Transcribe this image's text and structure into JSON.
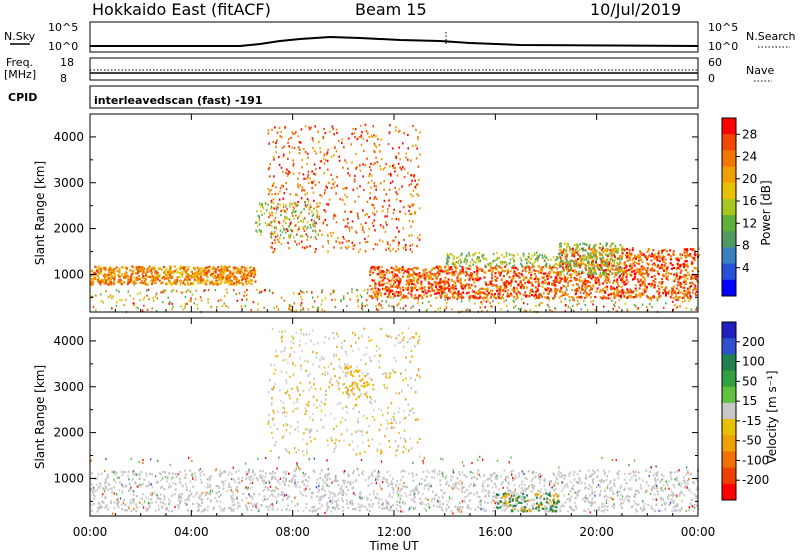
{
  "header": {
    "station": "Hokkaido East (fitACF)",
    "beam": "Beam 15",
    "date": "10/Jul/2019"
  },
  "top_panels": {
    "nsky_label": "N.Sky",
    "nsky_ticks": [
      "10^5",
      "10^0"
    ],
    "nsearch_label": "N.Search",
    "nsearch_ticks": [
      "10^5",
      "10^0"
    ],
    "freq_label_1": "Freq.",
    "freq_label_2": "[MHz]",
    "freq_ticks": [
      "18",
      "8"
    ],
    "nave_label": "Nave",
    "nave_ticks": [
      "60",
      "0"
    ],
    "cpid_label": "CPID",
    "cpid_text": "interleavedscan (fast) -191"
  },
  "chart_data": [
    {
      "type": "heatmap",
      "title": "",
      "xlabel": "",
      "ylabel": "Slant Range [km]",
      "xlim": [
        0,
        24
      ],
      "ylim": [
        180,
        4500
      ],
      "yticks": [
        "1000",
        "2000",
        "3000",
        "4000"
      ],
      "colorbar_label": "Power [dB]",
      "colorbar_ticks": [
        "4",
        "8",
        "12",
        "16",
        "20",
        "24",
        "28"
      ],
      "colorbar_colors": [
        "#0000ff",
        "#2a4fd8",
        "#3a7fbf",
        "#4f9a5f",
        "#60b03a",
        "#a8c820",
        "#e8c000",
        "#f0a000",
        "#f07800",
        "#f04800",
        "#ff0000"
      ]
    },
    {
      "type": "heatmap",
      "title": "",
      "xlabel": "Time UT",
      "ylabel": "Slant Range [km]",
      "xlim": [
        0,
        24
      ],
      "ylim": [
        180,
        4500
      ],
      "yticks": [
        "1000",
        "2000",
        "3000",
        "4000"
      ],
      "xticks": [
        "00:00",
        "04:00",
        "08:00",
        "12:00",
        "16:00",
        "20:00",
        "00:00"
      ],
      "colorbar_label": "Velocity [m s⁻¹]",
      "colorbar_ticks": [
        "200",
        "100",
        "50",
        "15",
        "-15",
        "-50",
        "-100",
        "-200"
      ],
      "colorbar_colors": [
        "#2020c0",
        "#3050d0",
        "#208050",
        "#30a040",
        "#60c040",
        "#c8c8c8",
        "#e8c000",
        "#f0a000",
        "#f07000",
        "#f04000",
        "#ff0000"
      ]
    }
  ]
}
